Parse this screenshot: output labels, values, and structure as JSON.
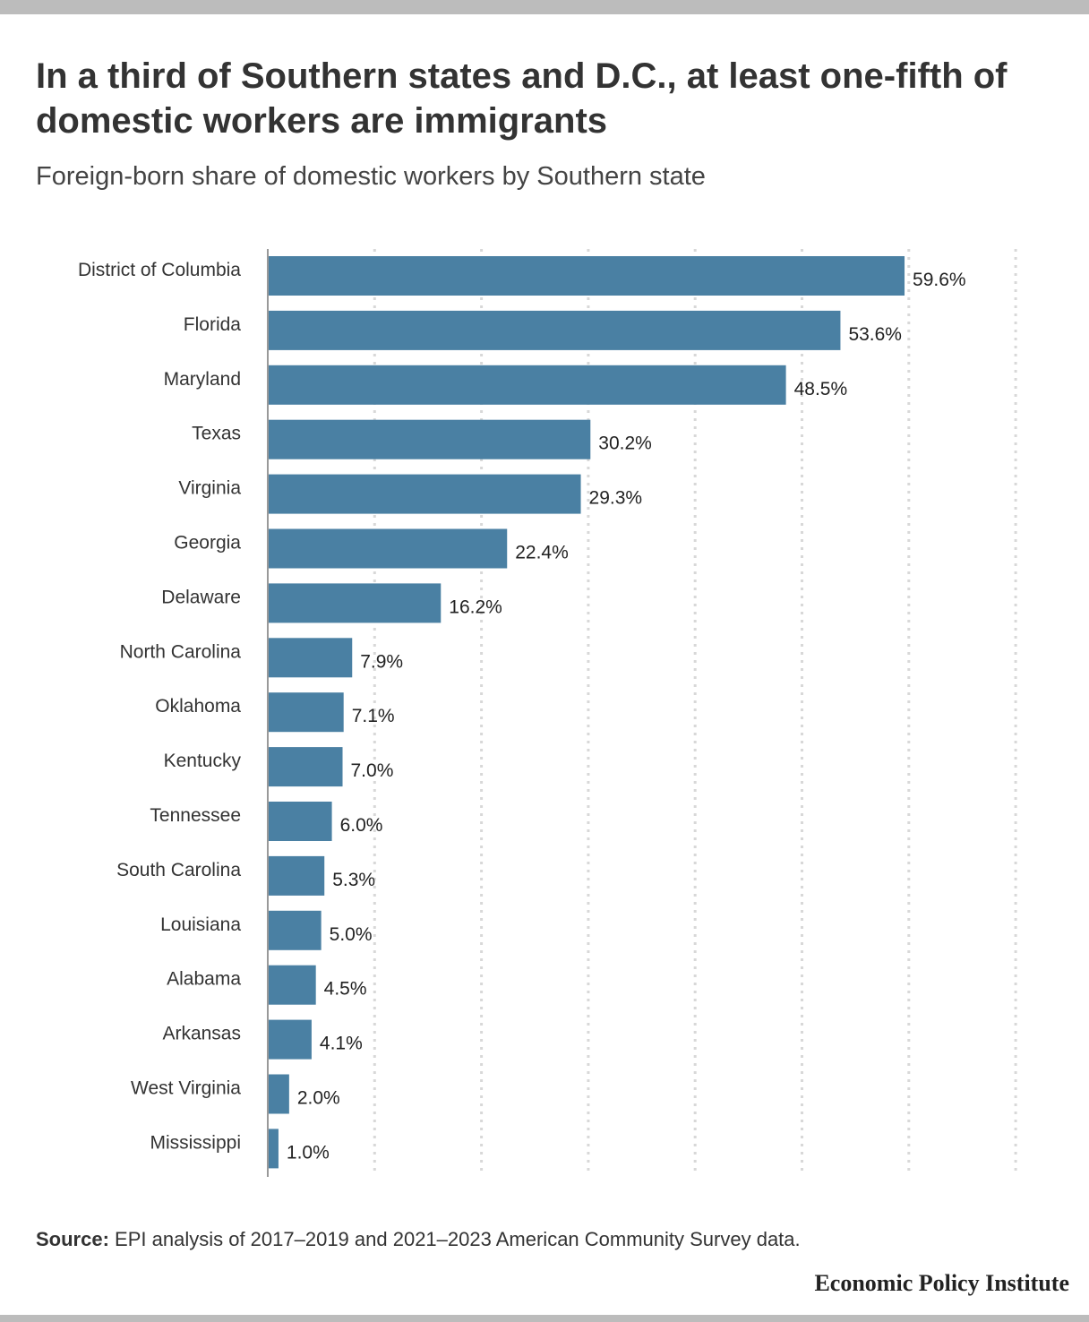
{
  "header": {
    "title": "In a third of Southern states and D.C., at least one-fifth of domestic workers are immigrants",
    "subtitle": "Foreign-born share of domestic workers by Southern state"
  },
  "footer": {
    "source_label": "Source:",
    "source_text": "EPI analysis of 2017–2019 and 2021–2023 American Community Survey data.",
    "brand": "Economic Policy Institute"
  },
  "colors": {
    "bar": "#4a80a3",
    "grid": "#d8d8d8",
    "axis": "#999999",
    "text": "#333333"
  },
  "chart_data": {
    "type": "bar",
    "orientation": "horizontal",
    "title": "In a third of Southern states and D.C., at least one-fifth of domestic workers are immigrants",
    "subtitle": "Foreign-born share of domestic workers by Southern state",
    "xlabel": "",
    "ylabel": "",
    "xlim": [
      0,
      70
    ],
    "grid": true,
    "grid_values": [
      10,
      20,
      30,
      40,
      50,
      60,
      70
    ],
    "categories": [
      "District of Columbia",
      "Florida",
      "Maryland",
      "Texas",
      "Virginia",
      "Georgia",
      "Delaware",
      "North Carolina",
      "Oklahoma",
      "Kentucky",
      "Tennessee",
      "South Carolina",
      "Louisiana",
      "Alabama",
      "Arkansas",
      "West Virginia",
      "Mississippi"
    ],
    "values": [
      59.6,
      53.6,
      48.5,
      30.2,
      29.3,
      22.4,
      16.2,
      7.9,
      7.1,
      7.0,
      6.0,
      5.3,
      5.0,
      4.5,
      4.1,
      2.0,
      1.0
    ],
    "value_labels": [
      "59.6%",
      "53.6%",
      "48.5%",
      "30.2%",
      "29.3%",
      "22.4%",
      "16.2%",
      "7.9%",
      "7.1%",
      "7.0%",
      "6.0%",
      "5.3%",
      "5.0%",
      "4.5%",
      "4.1%",
      "2.0%",
      "1.0%"
    ]
  }
}
